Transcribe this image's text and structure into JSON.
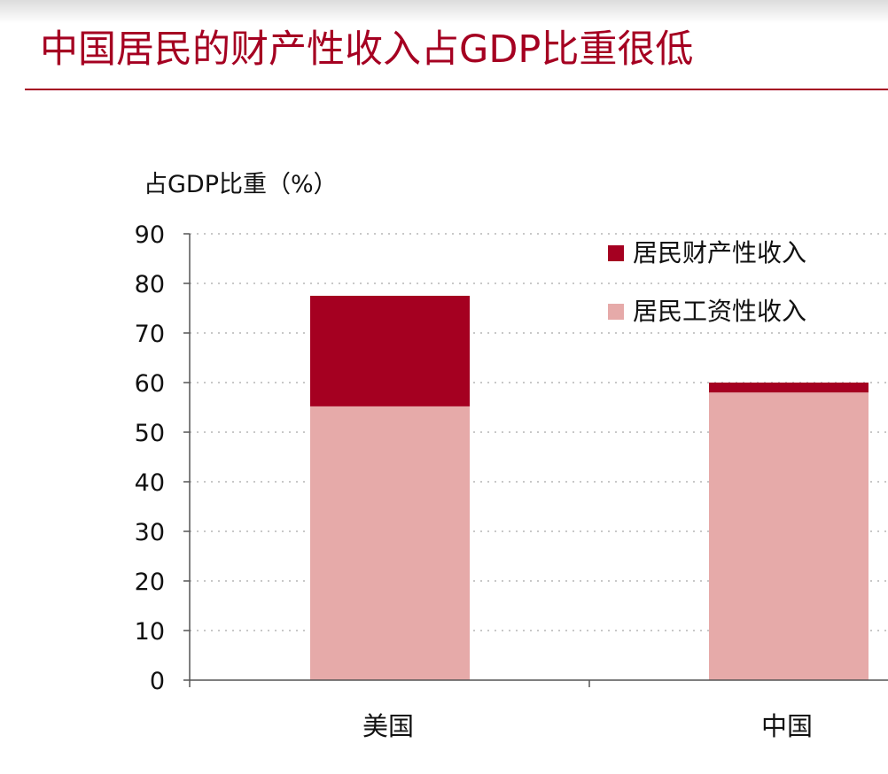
{
  "title": "中国居民的财产性收入占GDP比重很低",
  "colors": {
    "title": "#a50021",
    "property_income": "#a50021",
    "wage_income": "#e6aaa9",
    "gridline": "#b5b5b5",
    "axis": "#555555"
  },
  "chart_data": {
    "type": "bar",
    "stacked": true,
    "ylabel": "占GDP比重（%）",
    "xlabel": "",
    "ylim": [
      0,
      90
    ],
    "yticks": [
      0,
      10,
      20,
      30,
      40,
      50,
      60,
      70,
      80,
      90
    ],
    "grid": true,
    "legend_position": "top-right",
    "categories": [
      "美国",
      "中国"
    ],
    "series": [
      {
        "name": "居民工资性收入",
        "values": [
          55.2,
          58.0
        ],
        "color": "#e6aaa9"
      },
      {
        "name": "居民财产性收入",
        "values": [
          22.3,
          2.0
        ],
        "color": "#a50021"
      }
    ],
    "legend": [
      "居民财产性收入",
      "居民工资性收入"
    ]
  }
}
